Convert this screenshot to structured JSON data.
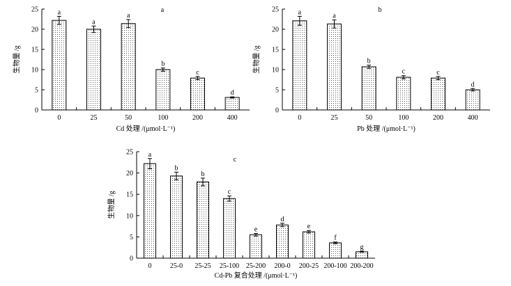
{
  "chart_data": [
    {
      "type": "bar",
      "panel_label": "a",
      "xlabel": "Cd 处理 /(μmol·L⁻¹)",
      "ylabel": "生物量 /g",
      "ylim": [
        0,
        25
      ],
      "yticks": [
        "0",
        "5",
        "10",
        "15",
        "20",
        "25"
      ],
      "categories": [
        "0",
        "25",
        "50",
        "100",
        "200",
        "400"
      ],
      "values": [
        22.2,
        20.0,
        21.4,
        10.0,
        7.9,
        3.1
      ],
      "errors": [
        1.0,
        0.8,
        1.0,
        0.4,
        0.4,
        0.15
      ],
      "letters": [
        "a",
        "a",
        "a",
        "b",
        "c",
        "d"
      ],
      "grid": false,
      "bar_pattern": "dotted"
    },
    {
      "type": "bar",
      "panel_label": "b",
      "xlabel": "Pb 处理 /(μmol·L⁻¹)",
      "ylabel": "生物量 /g",
      "ylim": [
        0,
        25
      ],
      "yticks": [
        "0",
        "5",
        "10",
        "15",
        "20",
        "25"
      ],
      "categories": [
        "0",
        "25",
        "50",
        "100",
        "200",
        "400"
      ],
      "values": [
        22.1,
        21.3,
        10.7,
        8.1,
        7.9,
        5.0
      ],
      "errors": [
        1.1,
        1.0,
        0.4,
        0.4,
        0.4,
        0.3
      ],
      "letters": [
        "a",
        "a",
        "b",
        "c",
        "c",
        "d"
      ],
      "grid": false,
      "bar_pattern": "dotted"
    },
    {
      "type": "bar",
      "panel_label": "c",
      "xlabel": "Cd-Pb 复合处理 /(μmol·L⁻¹)",
      "ylabel": "生物量 /g",
      "ylim": [
        0,
        25
      ],
      "yticks": [
        "0",
        "5",
        "10",
        "15",
        "20",
        "25"
      ],
      "categories": [
        "0",
        "25-0",
        "25-25",
        "25-100",
        "25-200",
        "200-0",
        "200-25",
        "200-100",
        "200-200"
      ],
      "values": [
        22.2,
        19.3,
        17.9,
        14.0,
        5.5,
        7.8,
        6.2,
        3.6,
        1.5
      ],
      "errors": [
        1.2,
        0.9,
        0.9,
        0.6,
        0.3,
        0.4,
        0.3,
        0.2,
        0.1
      ],
      "letters": [
        "a",
        "b",
        "b",
        "c",
        "e",
        "d",
        "e",
        "f",
        "g"
      ],
      "grid": false,
      "bar_pattern": "dotted"
    }
  ]
}
